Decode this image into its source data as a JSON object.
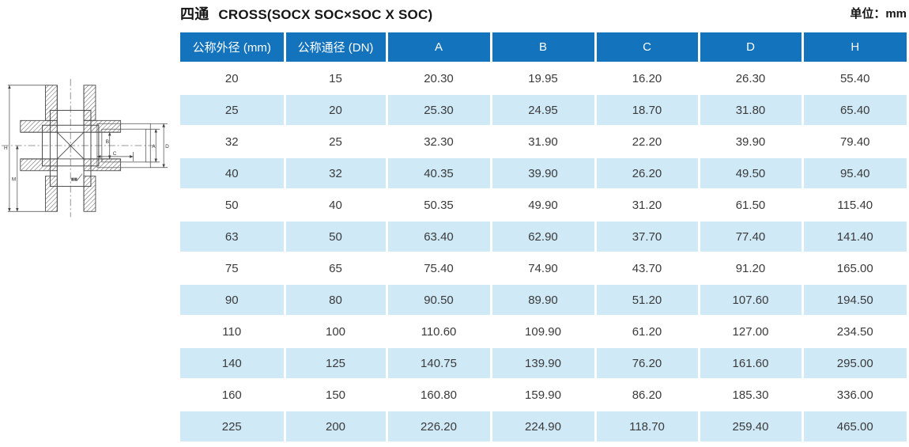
{
  "header": {
    "title_zh": "四通",
    "title_en": "CROSS(SOCX SOC×SOC X SOC)",
    "unit_label": "单位：mm"
  },
  "table": {
    "columns": [
      "公称外径 (mm)",
      "公称通径 (DN)",
      "A",
      "B",
      "C",
      "D",
      "H"
    ],
    "rows": [
      [
        "20",
        "15",
        "20.30",
        "19.95",
        "16.20",
        "26.30",
        "55.40"
      ],
      [
        "25",
        "20",
        "25.30",
        "24.95",
        "18.70",
        "31.80",
        "65.40"
      ],
      [
        "32",
        "25",
        "32.30",
        "31.90",
        "22.20",
        "39.90",
        "79.40"
      ],
      [
        "40",
        "32",
        "40.35",
        "39.90",
        "26.20",
        "49.50",
        "95.40"
      ],
      [
        "50",
        "40",
        "50.35",
        "49.90",
        "31.20",
        "61.50",
        "115.40"
      ],
      [
        "63",
        "50",
        "63.40",
        "62.90",
        "37.70",
        "77.40",
        "141.40"
      ],
      [
        "75",
        "65",
        "75.40",
        "74.90",
        "43.70",
        "91.20",
        "165.00"
      ],
      [
        "90",
        "80",
        "90.50",
        "89.90",
        "51.20",
        "107.60",
        "194.50"
      ],
      [
        "110",
        "100",
        "110.60",
        "109.90",
        "61.20",
        "127.00",
        "234.50"
      ],
      [
        "140",
        "125",
        "140.75",
        "139.90",
        "76.20",
        "161.60",
        "295.00"
      ],
      [
        "160",
        "150",
        "160.80",
        "159.90",
        "86.20",
        "185.30",
        "336.00"
      ],
      [
        "225",
        "200",
        "226.20",
        "224.90",
        "118.70",
        "259.40",
        "465.00"
      ]
    ]
  },
  "drawing": {
    "labels": {
      "overall_height": "H",
      "inner_height": "M",
      "socket_root": "B",
      "socket_depth": "C",
      "socket_mouth": "A",
      "hub_od": "D"
    }
  },
  "colors": {
    "header_blue": "#1373bd",
    "row_light_blue": "#cfe9f7",
    "text_dark": "#3b3b3b"
  }
}
